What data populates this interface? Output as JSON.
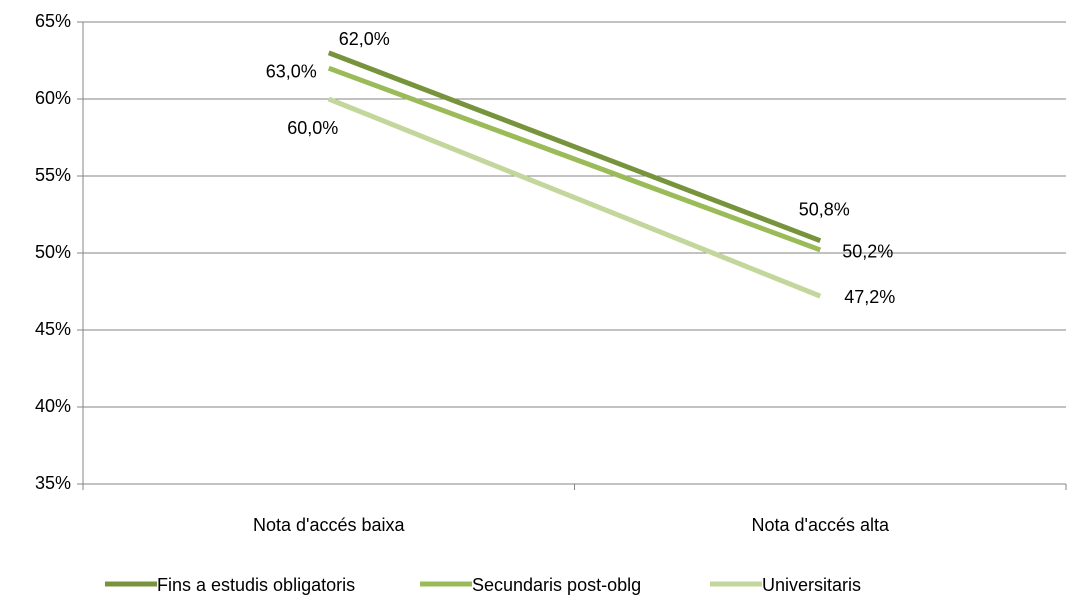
{
  "chart_data": {
    "type": "line",
    "categories": [
      "Nota d'accés baixa",
      "Nota d'accés alta"
    ],
    "series": [
      {
        "name": "Fins a estudis obligatoris",
        "color": "#77933c",
        "values": [
          63.0,
          50.8
        ],
        "value_labels": [
          "63,0%",
          "50,8%"
        ]
      },
      {
        "name": "Secundaris post-oblg",
        "color": "#9bbb59",
        "values": [
          62.0,
          50.2
        ],
        "value_labels": [
          "62,0%",
          "50,2%"
        ]
      },
      {
        "name": "Universitaris",
        "color": "#c3d69b",
        "values": [
          60.0,
          47.2
        ],
        "value_labels": [
          "60,0%",
          "47,2%"
        ]
      }
    ],
    "ylim": [
      35,
      65
    ],
    "yticks": [
      {
        "value": 35,
        "label": "35%"
      },
      {
        "value": 40,
        "label": "40%"
      },
      {
        "value": 45,
        "label": "45%"
      },
      {
        "value": 50,
        "label": "50%"
      },
      {
        "value": 55,
        "label": "55%"
      },
      {
        "value": 60,
        "label": "60%"
      },
      {
        "value": 65,
        "label": "65%"
      }
    ],
    "grid": true,
    "legend": "bottom"
  }
}
